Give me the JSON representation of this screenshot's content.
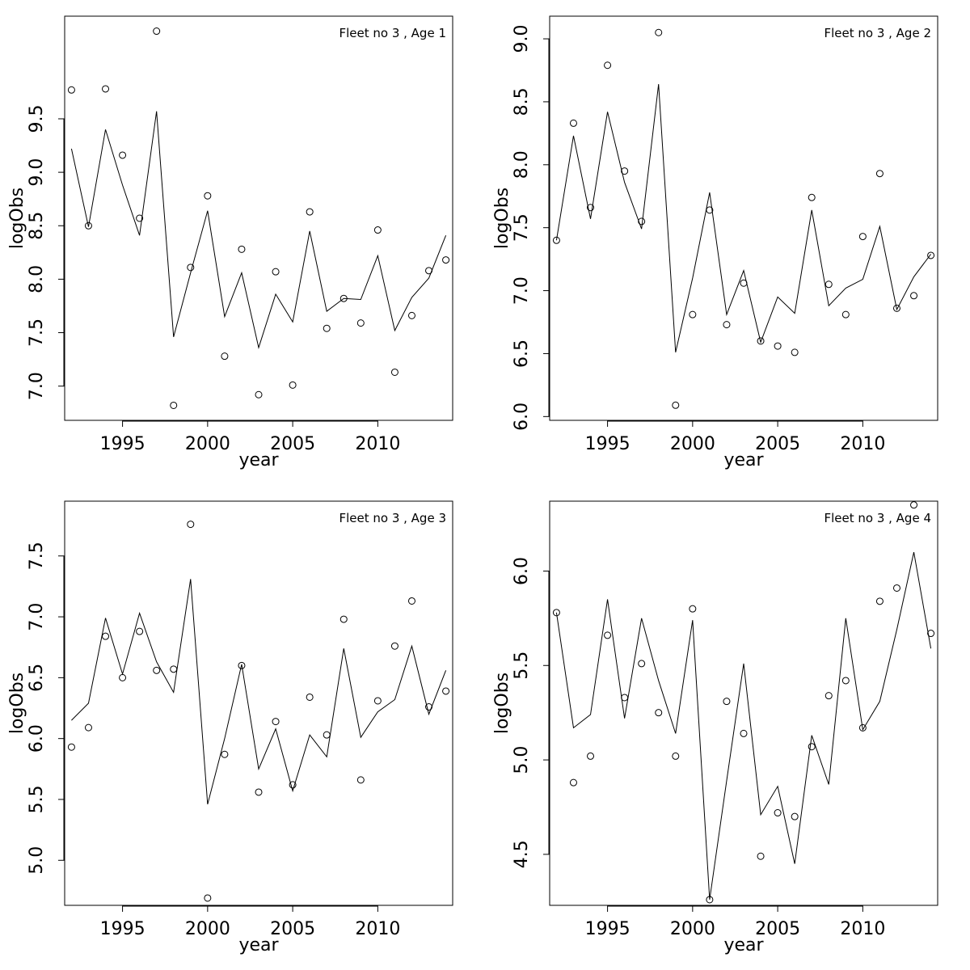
{
  "chart_data": [
    {
      "type": "line",
      "title": "Fleet no 3 , Age 1",
      "xlabel": "year",
      "ylabel": "logObs",
      "xlim": [
        1991.6,
        2014.4
      ],
      "ylim": [
        6.68,
        10.46
      ],
      "xticks": [
        1995,
        2000,
        2005,
        2010
      ],
      "yticks": [
        7.0,
        7.5,
        8.0,
        8.5,
        9.0,
        9.5
      ],
      "ytick_labels": [
        "7.0",
        "7.5",
        "8.0",
        "8.5",
        "9.0",
        "9.5"
      ],
      "x": [
        1992,
        1993,
        1994,
        1995,
        1996,
        1997,
        1998,
        1999,
        2000,
        2001,
        2002,
        2003,
        2004,
        2005,
        2006,
        2007,
        2008,
        2009,
        2010,
        2011,
        2012,
        2013,
        2014
      ],
      "series": [
        {
          "style": "points",
          "values": [
            9.77,
            8.5,
            9.78,
            9.16,
            8.57,
            10.32,
            6.82,
            8.11,
            8.78,
            7.28,
            8.28,
            6.92,
            8.07,
            7.01,
            8.63,
            7.54,
            7.82,
            7.59,
            8.46,
            7.13,
            7.66,
            8.08,
            8.18
          ]
        },
        {
          "style": "line",
          "values": [
            9.22,
            8.49,
            9.4,
            8.88,
            8.41,
            9.57,
            7.46,
            8.06,
            8.64,
            7.65,
            8.06,
            7.36,
            7.86,
            7.6,
            8.45,
            7.7,
            7.82,
            7.81,
            8.22,
            7.52,
            7.83,
            8.01,
            8.41
          ]
        }
      ]
    },
    {
      "type": "line",
      "title": "Fleet no 3 , Age 2",
      "xlabel": "year",
      "ylabel": "logObs",
      "xlim": [
        1991.6,
        2014.4
      ],
      "ylim": [
        5.97,
        9.18
      ],
      "xticks": [
        1995,
        2000,
        2005,
        2010
      ],
      "yticks": [
        6.0,
        6.5,
        7.0,
        7.5,
        8.0,
        8.5,
        9.0
      ],
      "ytick_labels": [
        "6.0",
        "6.5",
        "7.0",
        "7.5",
        "8.0",
        "8.5",
        "9.0"
      ],
      "x": [
        1992,
        1993,
        1994,
        1995,
        1996,
        1997,
        1998,
        1999,
        2000,
        2001,
        2002,
        2003,
        2004,
        2005,
        2006,
        2007,
        2008,
        2009,
        2010,
        2011,
        2012,
        2013,
        2014
      ],
      "series": [
        {
          "style": "points",
          "values": [
            7.4,
            8.33,
            7.66,
            8.79,
            7.95,
            7.55,
            9.05,
            6.09,
            6.81,
            7.64,
            6.73,
            7.06,
            6.6,
            6.56,
            6.51,
            7.74,
            7.05,
            6.81,
            7.43,
            7.93,
            6.86,
            6.96,
            7.28
          ]
        },
        {
          "style": "line",
          "values": [
            7.4,
            8.23,
            7.57,
            8.42,
            7.86,
            7.49,
            8.64,
            6.51,
            7.1,
            7.78,
            6.81,
            7.16,
            6.59,
            6.95,
            6.82,
            7.64,
            6.88,
            7.02,
            7.09,
            7.51,
            6.85,
            7.11,
            7.29
          ]
        }
      ]
    },
    {
      "type": "line",
      "title": "Fleet no 3 , Age 3",
      "xlabel": "year",
      "ylabel": "logObs",
      "xlim": [
        1991.6,
        2014.4
      ],
      "ylim": [
        4.63,
        7.95
      ],
      "xticks": [
        1995,
        2000,
        2005,
        2010
      ],
      "yticks": [
        5.0,
        5.5,
        6.0,
        6.5,
        7.0,
        7.5
      ],
      "ytick_labels": [
        "5.0",
        "5.5",
        "6.0",
        "6.5",
        "7.0",
        "7.5"
      ],
      "x": [
        1992,
        1993,
        1994,
        1995,
        1996,
        1997,
        1998,
        1999,
        2000,
        2001,
        2002,
        2003,
        2004,
        2005,
        2006,
        2007,
        2008,
        2009,
        2010,
        2011,
        2012,
        2013,
        2014
      ],
      "series": [
        {
          "style": "points",
          "values": [
            5.93,
            6.09,
            6.84,
            6.5,
            6.88,
            6.56,
            6.57,
            7.76,
            4.69,
            5.87,
            6.6,
            5.56,
            6.14,
            5.62,
            6.34,
            6.03,
            6.98,
            5.66,
            6.31,
            6.76,
            7.13,
            6.26,
            6.39
          ]
        },
        {
          "style": "line",
          "values": [
            6.15,
            6.29,
            6.99,
            6.53,
            7.03,
            6.63,
            6.38,
            7.31,
            5.46,
            6.0,
            6.61,
            5.75,
            6.08,
            5.57,
            6.03,
            5.85,
            6.74,
            6.01,
            6.22,
            6.32,
            6.76,
            6.2,
            6.56
          ]
        }
      ]
    },
    {
      "type": "line",
      "title": "Fleet no 3 , Age 4",
      "xlabel": "year",
      "ylabel": "logObs",
      "xlim": [
        1991.6,
        2014.4
      ],
      "ylim": [
        4.23,
        6.37
      ],
      "xticks": [
        1995,
        2000,
        2005,
        2010
      ],
      "yticks": [
        4.5,
        5.0,
        5.5,
        6.0
      ],
      "ytick_labels": [
        "4.5",
        "5.0",
        "5.5",
        "6.0"
      ],
      "x": [
        1992,
        1993,
        1994,
        1995,
        1996,
        1997,
        1998,
        1999,
        2000,
        2001,
        2002,
        2003,
        2004,
        2005,
        2006,
        2007,
        2008,
        2009,
        2010,
        2011,
        2012,
        2013,
        2014
      ],
      "series": [
        {
          "style": "points",
          "values": [
            5.78,
            4.88,
            5.02,
            5.66,
            5.33,
            5.51,
            5.25,
            5.02,
            5.8,
            4.26,
            5.31,
            5.14,
            4.49,
            4.72,
            4.7,
            5.07,
            5.34,
            5.42,
            5.17,
            5.84,
            5.91,
            6.35,
            5.67
          ]
        },
        {
          "style": "line",
          "values": [
            5.78,
            5.17,
            5.24,
            5.85,
            5.22,
            5.75,
            5.42,
            5.14,
            5.74,
            4.26,
            4.89,
            5.51,
            4.71,
            4.86,
            4.45,
            5.13,
            4.87,
            5.75,
            5.16,
            5.31,
            5.69,
            6.1,
            5.59
          ]
        }
      ]
    }
  ]
}
